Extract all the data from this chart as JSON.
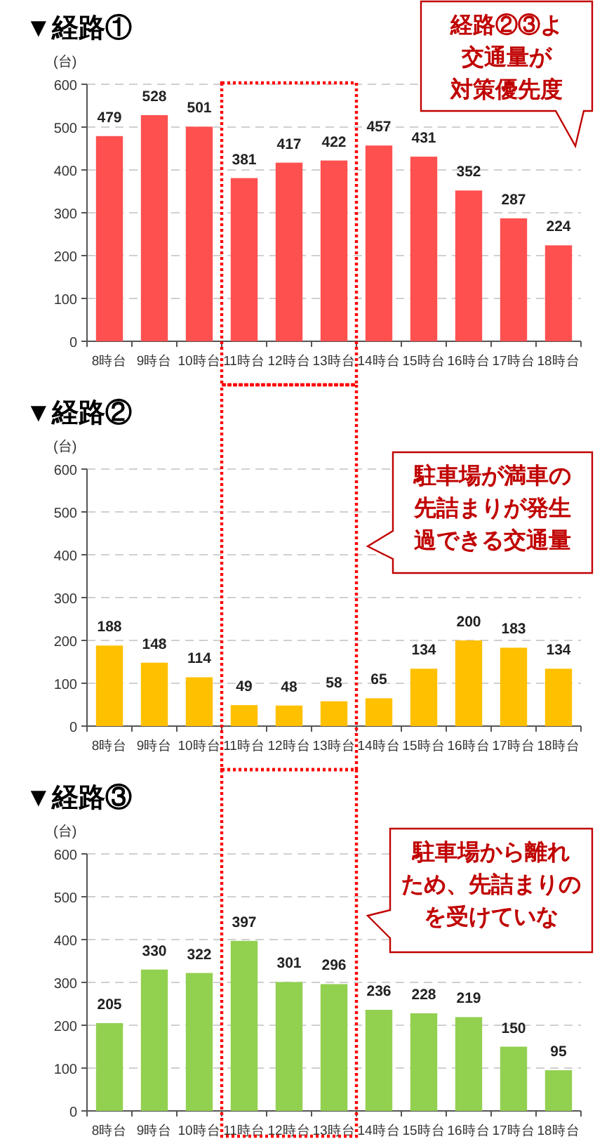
{
  "chart_data": [
    {
      "type": "bar",
      "title": "▼経路①",
      "ylabel": "(台)",
      "categories": [
        "8時台",
        "9時台",
        "10時台",
        "11時台",
        "12時台",
        "13時台",
        "14時台",
        "15時台",
        "16時台",
        "17時台",
        "18時台"
      ],
      "series": [
        {
          "color": "#ff5050",
          "values": [
            479,
            528,
            501,
            381,
            417,
            422,
            457,
            431,
            352,
            287,
            224
          ]
        }
      ],
      "ylim": [
        0,
        600
      ],
      "yticks": [
        0,
        100,
        200,
        300,
        400,
        500,
        600
      ],
      "grid": "y",
      "data_labels": true,
      "annotations": [
        "経路②③よ",
        "交通量が",
        "対策優先度"
      ]
    },
    {
      "type": "bar",
      "title": "▼経路②",
      "ylabel": "(台)",
      "categories": [
        "8時台",
        "9時台",
        "10時台",
        "11時台",
        "12時台",
        "13時台",
        "14時台",
        "15時台",
        "16時台",
        "17時台",
        "18時台"
      ],
      "series": [
        {
          "color": "#ffc000",
          "values": [
            188,
            148,
            114,
            49,
            48,
            58,
            65,
            134,
            200,
            183,
            134
          ]
        }
      ],
      "ylim": [
        0,
        600
      ],
      "yticks": [
        0,
        100,
        200,
        300,
        400,
        500,
        600
      ],
      "grid": "y",
      "data_labels": true,
      "annotations": [
        "駐車場が満車の",
        "先詰まりが発生",
        "過できる交通量"
      ]
    },
    {
      "type": "bar",
      "title": "▼経路③",
      "ylabel": "(台)",
      "categories": [
        "8時台",
        "9時台",
        "10時台",
        "11時台",
        "12時台",
        "13時台",
        "14時台",
        "15時台",
        "16時台",
        "17時台",
        "18時台"
      ],
      "series": [
        {
          "color": "#92d050",
          "values": [
            205,
            330,
            322,
            397,
            301,
            296,
            236,
            228,
            219,
            150,
            95
          ]
        }
      ],
      "ylim": [
        0,
        600
      ],
      "yticks": [
        0,
        100,
        200,
        300,
        400,
        500,
        600
      ],
      "grid": "y",
      "data_labels": true,
      "annotations": [
        "駐車場から離れ",
        "ため、先詰まりの",
        "を受けていな"
      ]
    }
  ]
}
